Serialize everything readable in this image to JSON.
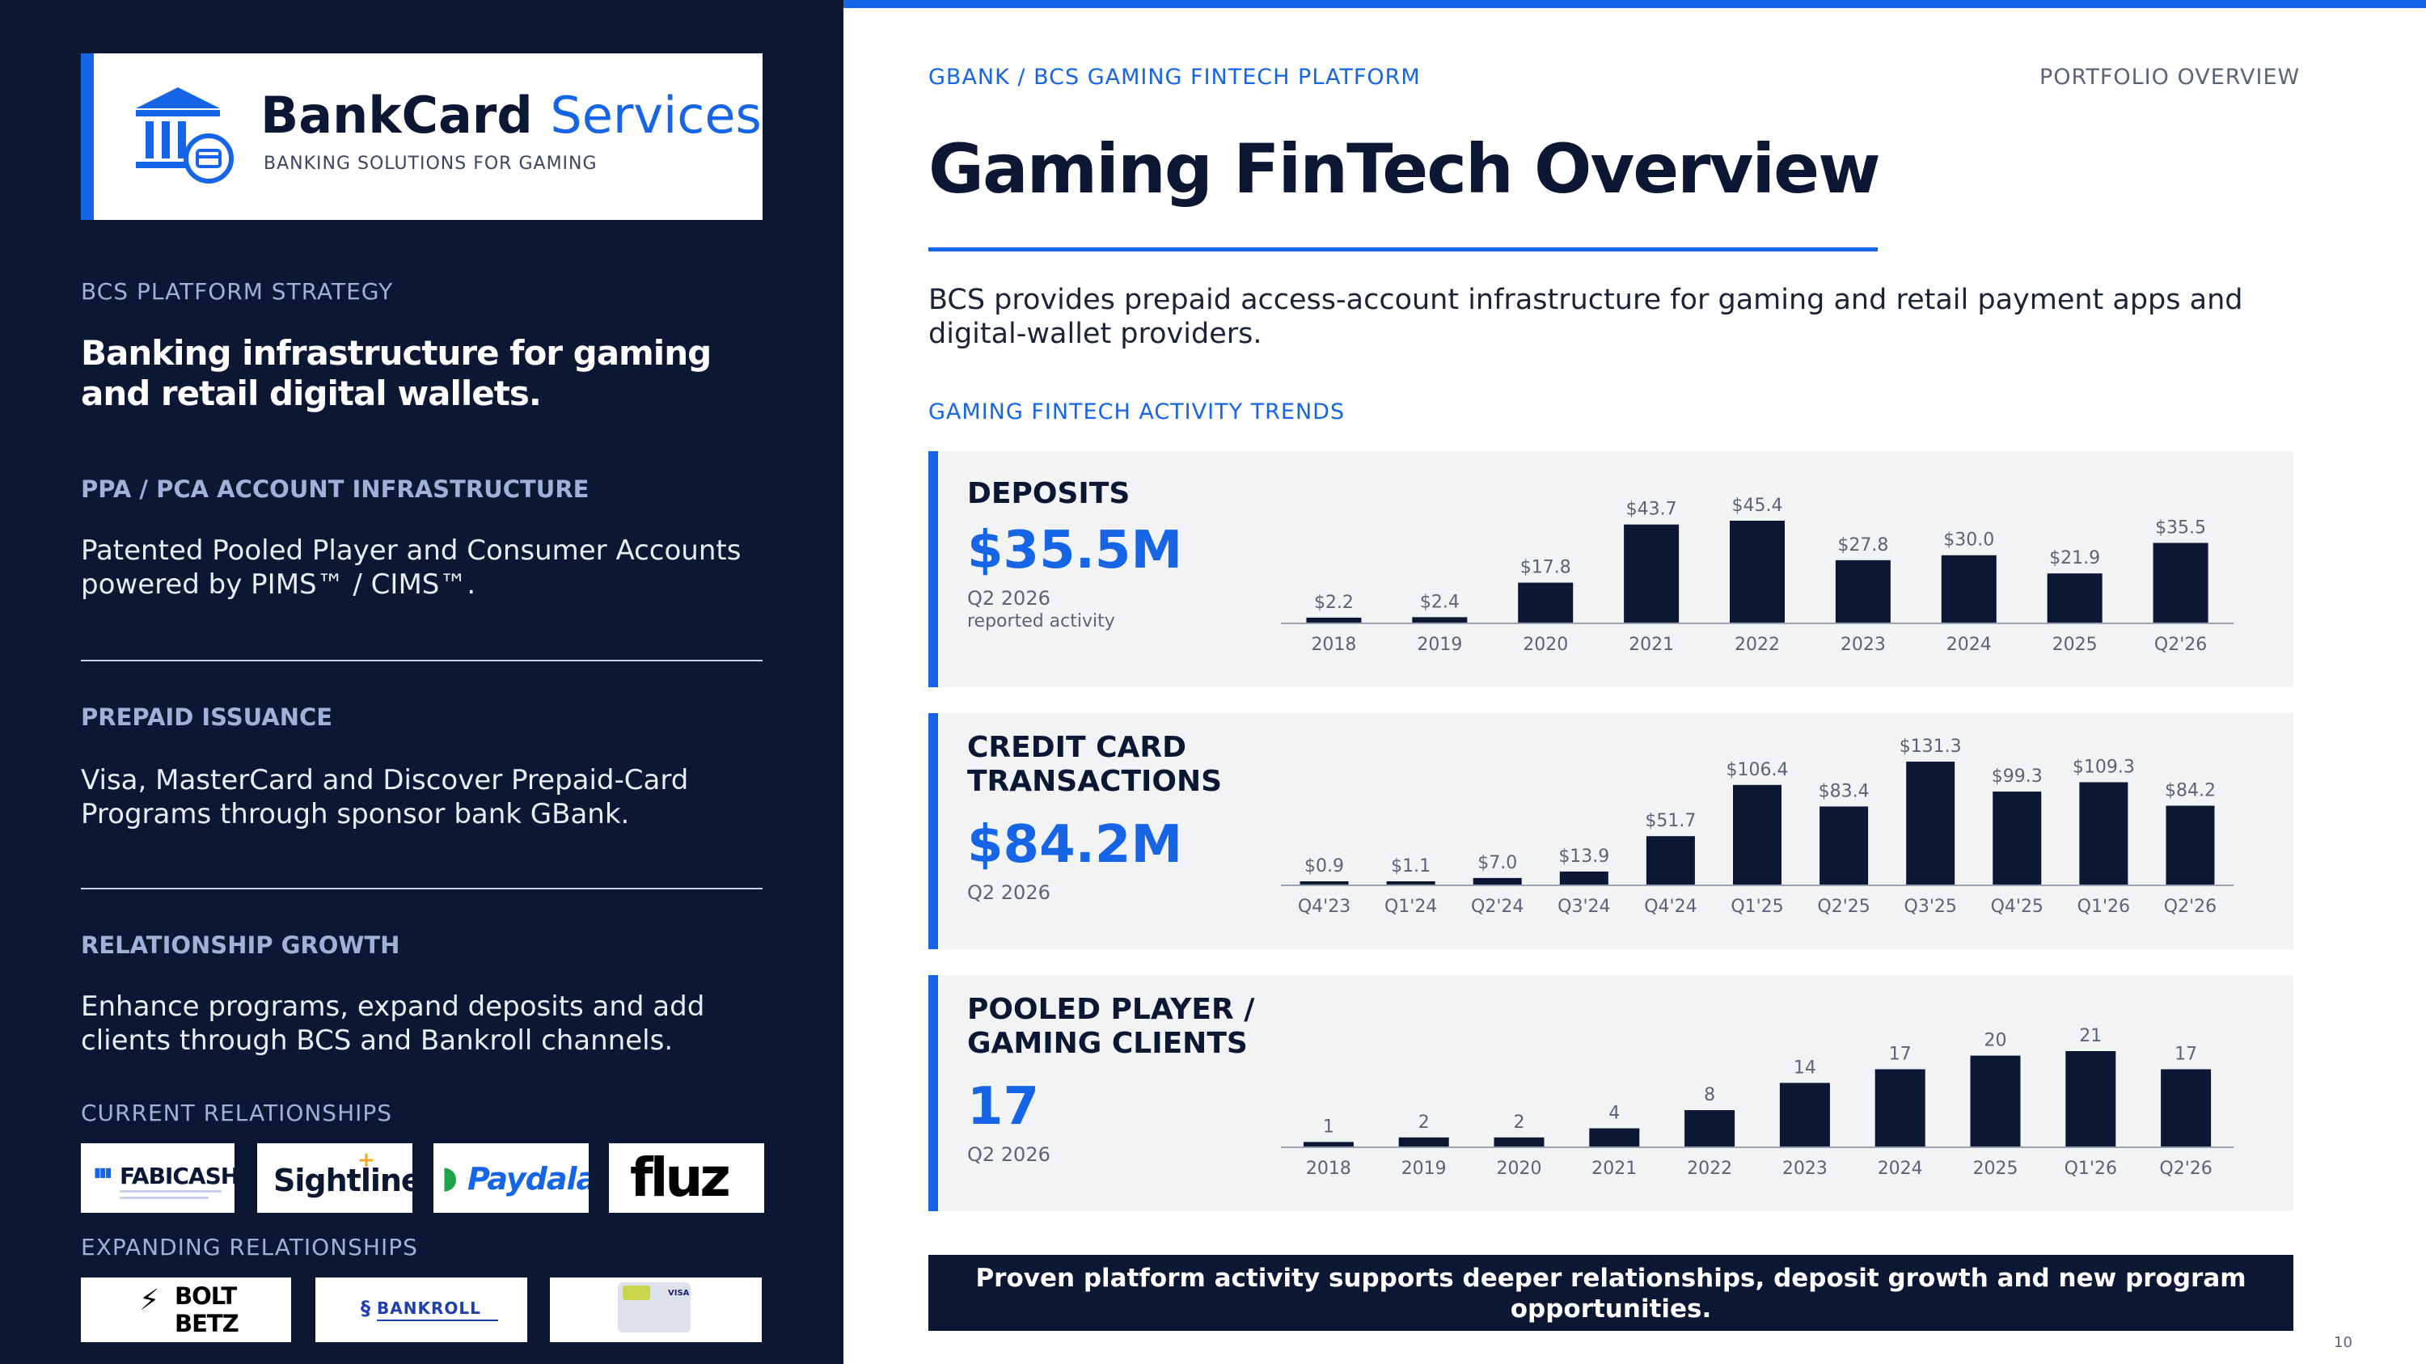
{
  "sidebar": {
    "brand_name": "BankCard",
    "brand_name_accent": "Services",
    "brand_tagline": "BANKING SOLUTIONS FOR GAMING",
    "eyebrow": "BCS PLATFORM STRATEGY",
    "headline": "Banking infrastructure for gaming and retail digital wallets.",
    "sections": [
      {
        "title": "PPA / PCA ACCOUNT INFRASTRUCTURE",
        "body": "Patented Pooled Player and Consumer Accounts powered by PIMS™ / CIMS™."
      },
      {
        "title": "PREPAID ISSUANCE",
        "body": "Visa, MasterCard and Discover Prepaid-Card Programs through sponsor bank GBank."
      },
      {
        "title": "RELATIONSHIP GROWTH",
        "body": "Enhance programs, expand deposits and add clients through BCS and Bankroll channels."
      }
    ],
    "current_label": "CURRENT RELATIONSHIPS",
    "current_logos": [
      "FABICASH",
      "Sightline",
      "Paydala",
      "fluz"
    ],
    "expanding_label": "EXPANDING RELATIONSHIPS",
    "expanding_logos": [
      "BOLT",
      "BETZ",
      "BANKROLL",
      "VISA"
    ]
  },
  "header": {
    "breadcrumb": "GBANK / BCS GAMING FINTECH PLATFORM",
    "section": "PORTFOLIO  OVERVIEW",
    "title": "Gaming FinTech Overview",
    "intro": "BCS provides prepaid access-account infrastructure for gaming and retail payment apps and digital-wallet providers.",
    "trends_label": "GAMING FINTECH ACTIVITY TRENDS"
  },
  "panels": [
    {
      "title": "DEPOSITS",
      "big_value": "$35.5M",
      "sub": "Q2 2026",
      "note": "reported  activity"
    },
    {
      "title": "CREDIT CARD TRANSACTIONS",
      "big_value": "$84.2M",
      "sub": "Q2 2026",
      "note": ""
    },
    {
      "title": "POOLED PLAYER / GAMING CLIENTS",
      "big_value": "17",
      "sub": "Q2 2026",
      "note": ""
    }
  ],
  "chart_data": [
    {
      "type": "bar",
      "title": "DEPOSITS",
      "categories": [
        "2018",
        "2019",
        "2020",
        "2021",
        "2022",
        "2023",
        "2024",
        "2025",
        "Q2'26"
      ],
      "values": [
        2.2,
        2.4,
        17.8,
        43.7,
        45.4,
        27.8,
        30.0,
        21.9,
        35.5
      ],
      "labels": [
        "$2.2",
        "$2.4",
        "$17.8",
        "$43.7",
        "$45.4",
        "$27.8",
        "$30.0",
        "$21.9",
        "$35.5"
      ],
      "ylim": [
        0,
        45.4
      ],
      "grid": false,
      "color": "#0b1733"
    },
    {
      "type": "bar",
      "title": "CREDIT CARD TRANSACTIONS",
      "categories": [
        "Q4'23",
        "Q1'24",
        "Q2'24",
        "Q3'24",
        "Q4'24",
        "Q1'25",
        "Q2'25",
        "Q3'25",
        "Q4'25",
        "Q1'26",
        "Q2'26"
      ],
      "values": [
        0.9,
        1.1,
        7.0,
        13.9,
        51.7,
        106.4,
        83.4,
        131.3,
        99.3,
        109.3,
        84.2
      ],
      "labels": [
        "$0.9",
        "$1.1",
        "$7.0",
        "$13.9",
        "$51.7",
        "$106.4",
        "$83.4",
        "$131.3",
        "$99.3",
        "$109.3",
        "$84.2"
      ],
      "ylim": [
        0,
        131.3
      ],
      "grid": false,
      "color": "#0b1733"
    },
    {
      "type": "bar",
      "title": "POOLED PLAYER / GAMING CLIENTS",
      "categories": [
        "2018",
        "2019",
        "2020",
        "2021",
        "2022",
        "2023",
        "2024",
        "2025",
        "Q1'26",
        "Q2'26"
      ],
      "values": [
        1,
        2,
        2,
        4,
        8,
        14,
        17,
        20,
        21,
        17
      ],
      "labels": [
        "1",
        "2",
        "2",
        "4",
        "8",
        "14",
        "17",
        "20",
        "21",
        "17"
      ],
      "ylim": [
        0,
        21
      ],
      "grid": false,
      "color": "#0b1733"
    }
  ],
  "footer": {
    "banner": "Proven platform activity supports deeper relationships, deposit growth and new program opportunities.",
    "page_number": "10"
  },
  "colors": {
    "navy": "#0b1733",
    "accent_blue": "#1565e6",
    "panel_bg": "#f2f3f5"
  }
}
